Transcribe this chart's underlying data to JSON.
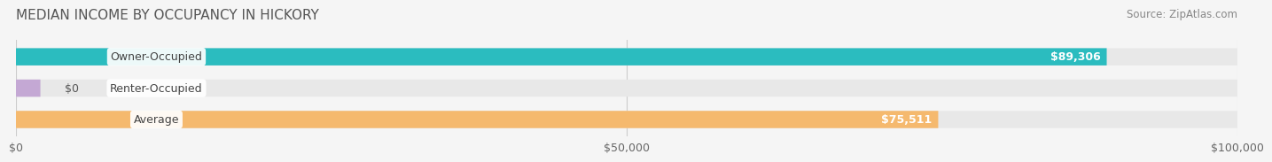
{
  "title": "MEDIAN INCOME BY OCCUPANCY IN HICKORY",
  "source": "Source: ZipAtlas.com",
  "categories": [
    "Owner-Occupied",
    "Renter-Occupied",
    "Average"
  ],
  "values": [
    89306,
    0,
    75511
  ],
  "bar_colors": [
    "#2bbcbf",
    "#c4a8d4",
    "#f5b96e"
  ],
  "bar_labels": [
    "$89,306",
    "$0",
    "$75,511"
  ],
  "xlim": [
    0,
    100000
  ],
  "xticks": [
    0,
    50000,
    100000
  ],
  "xtick_labels": [
    "$0",
    "$50,000",
    "$100,000"
  ],
  "background_color": "#f5f5f5",
  "bar_bg_color": "#e8e8e8",
  "title_fontsize": 11,
  "label_fontsize": 9,
  "source_fontsize": 8.5
}
